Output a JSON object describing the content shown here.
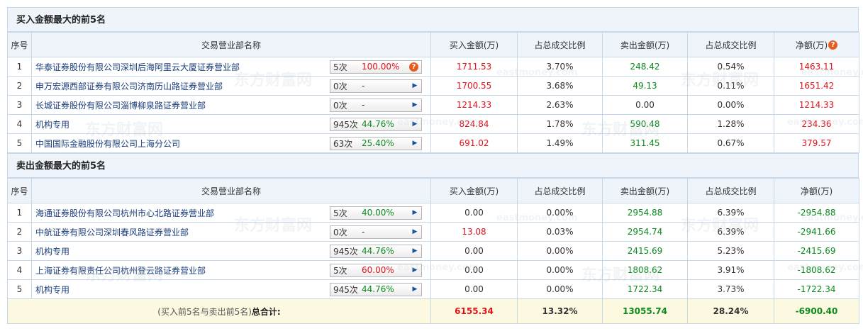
{
  "buy_section": {
    "title": "买入金额最大的前5名",
    "headers": [
      "序号",
      "交易营业部名称",
      "买入金额(万)",
      "占总成交比例",
      "卖出金额(万)",
      "占总成交比例",
      "净额(万)"
    ],
    "rows": [
      {
        "idx": "1",
        "name": "华泰证券股份有限公司深圳后海阿里云大厦证券营业部",
        "count": "5次",
        "rate": "100.00%",
        "buy": "1711.53",
        "buy_pct": "3.70%",
        "sell": "248.42",
        "sell_pct": "0.54%",
        "net": "1463.11",
        "icon": "question-icon"
      },
      {
        "idx": "2",
        "name": "申万宏源西部证券有限公司济南历山路证券营业部",
        "count": "0次",
        "rate": "-",
        "buy": "1700.55",
        "buy_pct": "3.68%",
        "sell": "49.13",
        "sell_pct": "0.11%",
        "net": "1651.42",
        "icon": "arrow-icon"
      },
      {
        "idx": "3",
        "name": "长城证券股份有限公司淄博柳泉路证券营业部",
        "count": "0次",
        "rate": "-",
        "buy": "1214.33",
        "buy_pct": "2.63%",
        "sell": "0.00",
        "sell_pct": "0.00%",
        "net": "1214.33",
        "icon": "arrow-icon"
      },
      {
        "idx": "4",
        "name": "机构专用",
        "count": "945次",
        "rate": "44.76%",
        "buy": "824.84",
        "buy_pct": "1.78%",
        "sell": "590.48",
        "sell_pct": "1.28%",
        "net": "234.36",
        "icon": "arrow-icon"
      },
      {
        "idx": "5",
        "name": "中国国际金融股份有限公司上海分公司",
        "count": "63次",
        "rate": "25.40%",
        "buy": "691.02",
        "buy_pct": "1.49%",
        "sell": "311.45",
        "sell_pct": "0.67%",
        "net": "379.57",
        "icon": "arrow-icon"
      }
    ]
  },
  "sell_section": {
    "title": "卖出金额最大的前5名",
    "headers": [
      "序号",
      "交易营业部名称",
      "买入金额(万)",
      "占总成交比例",
      "卖出金额(万)",
      "占总成交比例",
      "净额(万)"
    ],
    "rows": [
      {
        "idx": "1",
        "name": "海通证券股份有限公司杭州市心北路证券营业部",
        "count": "5次",
        "rate": "40.00%",
        "buy": "0.00",
        "buy_pct": "0.00%",
        "sell": "2954.88",
        "sell_pct": "6.39%",
        "net": "-2954.88",
        "icon": "arrow-icon"
      },
      {
        "idx": "2",
        "name": "中航证券有限公司深圳春风路证券营业部",
        "count": "0次",
        "rate": "-",
        "buy": "13.08",
        "buy_pct": "0.03%",
        "sell": "2954.74",
        "sell_pct": "6.39%",
        "net": "-2941.66",
        "icon": "arrow-icon"
      },
      {
        "idx": "3",
        "name": "机构专用",
        "count": "945次",
        "rate": "44.76%",
        "buy": "0.00",
        "buy_pct": "0.00%",
        "sell": "2415.69",
        "sell_pct": "5.23%",
        "net": "-2415.69",
        "icon": "arrow-icon"
      },
      {
        "idx": "4",
        "name": "上海证券有限责任公司杭州登云路证券营业部",
        "count": "5次",
        "rate": "60.00%",
        "buy": "0.00",
        "buy_pct": "0.00%",
        "sell": "1808.62",
        "sell_pct": "3.91%",
        "net": "-1808.62",
        "icon": "arrow-icon"
      },
      {
        "idx": "5",
        "name": "机构专用",
        "count": "945次",
        "rate": "44.76%",
        "buy": "0.00",
        "buy_pct": "0.00%",
        "sell": "1722.34",
        "sell_pct": "3.73%",
        "net": "-1722.34",
        "icon": "arrow-icon"
      }
    ]
  },
  "total": {
    "label_prefix": "(买入前5名与卖出前5名)",
    "label_bold": "总合计:",
    "buy": "6155.34",
    "buy_pct": "13.32%",
    "sell": "13055.74",
    "sell_pct": "28.24%",
    "net": "-6900.40"
  },
  "watermark": {
    "brand": "东方财富网",
    "domain": "eastmoney.com"
  },
  "colors": {
    "positive": "#e1121b",
    "negative": "#0b8a1e",
    "header_bg": "#eef4fa",
    "border": "#c6d7e7",
    "total_bg": "#fdf8e0"
  }
}
